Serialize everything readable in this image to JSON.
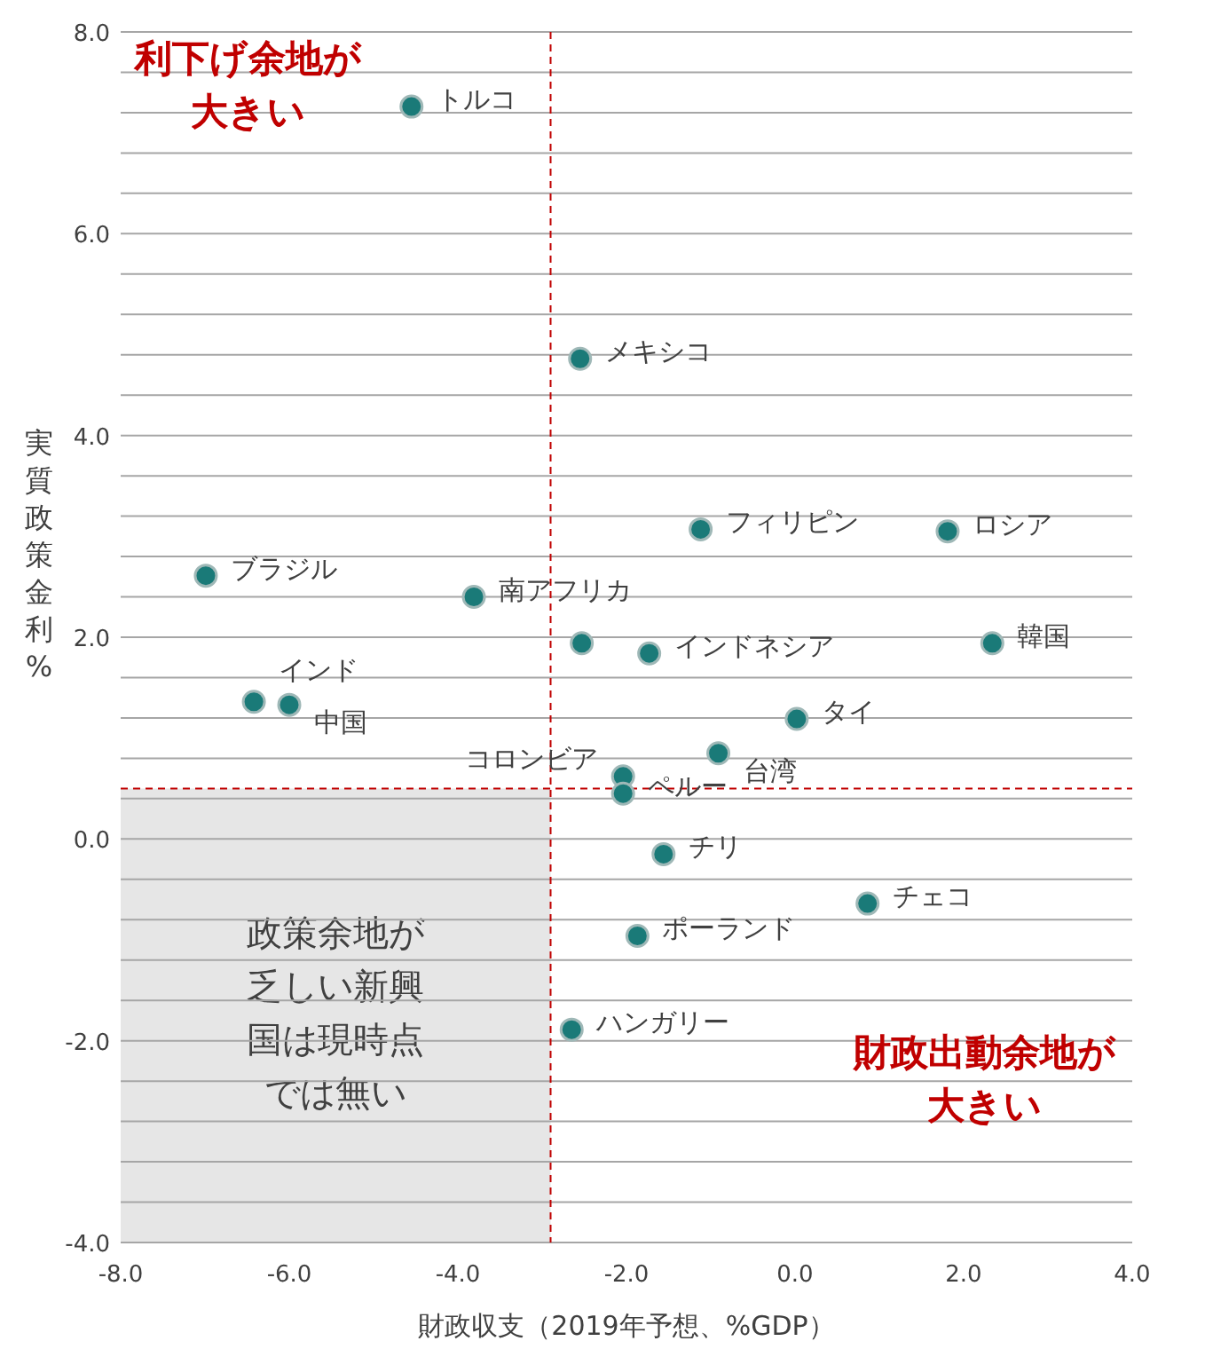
{
  "chart_data": {
    "type": "scatter",
    "xlabel": "財政収支（2019年予想、%GDP）",
    "ylabel": "実質政策金利%",
    "x": [
      -4.55,
      -2.55,
      -1.12,
      1.81,
      -6.99,
      -3.81,
      -2.53,
      -1.73,
      2.34,
      -6.42,
      -6.0,
      0.02,
      -0.91,
      -2.04,
      -2.04,
      -1.56,
      0.86,
      -1.87,
      -2.65
    ],
    "series": [
      {
        "color": "#1a7a78",
        "values": [
          7.26,
          4.76,
          3.07,
          3.05,
          2.61,
          2.4,
          1.94,
          1.84,
          1.94,
          1.36,
          1.33,
          1.19,
          0.85,
          0.62,
          0.45,
          -0.15,
          -0.64,
          -0.96,
          -1.89
        ]
      }
    ],
    "marker": "circle",
    "grid": "y",
    "xlim": [
      -8,
      4
    ],
    "xticks": [
      {
        "value": -8,
        "label": "-8.0"
      },
      {
        "value": -6,
        "label": "-6.0"
      },
      {
        "value": -4,
        "label": "-4.0"
      },
      {
        "value": -2,
        "label": "-2.0"
      },
      {
        "value": 0,
        "label": "0.0"
      },
      {
        "value": 2,
        "label": "2.0"
      },
      {
        "value": 4,
        "label": "4.0"
      }
    ],
    "ylim": [
      -4,
      8
    ],
    "yticks": [
      {
        "value": -4,
        "label": "-4.0"
      },
      {
        "value": -3.6,
        "label": null
      },
      {
        "value": -3.2,
        "label": null
      },
      {
        "value": -2.8,
        "label": null
      },
      {
        "value": -2.4,
        "label": null
      },
      {
        "value": -2,
        "label": "-2.0"
      },
      {
        "value": -1.6,
        "label": null
      },
      {
        "value": -1.2,
        "label": null
      },
      {
        "value": -0.8,
        "label": null
      },
      {
        "value": -0.4,
        "label": null
      },
      {
        "value": 0,
        "label": "0.0"
      },
      {
        "value": 0.4,
        "label": null
      },
      {
        "value": 0.8,
        "label": null
      },
      {
        "value": 1.2,
        "label": null
      },
      {
        "value": 1.6,
        "label": null
      },
      {
        "value": 2,
        "label": "2.0"
      },
      {
        "value": 2.4,
        "label": null
      },
      {
        "value": 2.8,
        "label": null
      },
      {
        "value": 3.2,
        "label": null
      },
      {
        "value": 3.6,
        "label": null
      },
      {
        "value": 4,
        "label": "4.0"
      },
      {
        "value": 4.4,
        "label": null
      },
      {
        "value": 4.8,
        "label": null
      },
      {
        "value": 5.2,
        "label": null
      },
      {
        "value": 5.6,
        "label": null
      },
      {
        "value": 6,
        "label": "6.0"
      },
      {
        "value": 6.4,
        "label": null
      },
      {
        "value": 6.8,
        "label": null
      },
      {
        "value": 7.2,
        "label": null
      },
      {
        "value": 7.6,
        "label": null
      },
      {
        "value": 8,
        "label": "8.0"
      }
    ],
    "ref_lines": [
      {
        "axis": "x",
        "value": -2.9,
        "color": "#c00000",
        "line_style": "dashed"
      },
      {
        "axis": "y",
        "value": 0.5,
        "color": "#c00000",
        "line_style": "dashed"
      }
    ],
    "bands": [
      {
        "axis": "x",
        "from": -8,
        "to": -2.9,
        "label": "政策余地が乏しい新興国は現時点では無い",
        "color": "#e6e6e6"
      }
    ],
    "annotations": [
      {
        "text": "トルコ",
        "x": -4.55,
        "y": 7.26
      },
      {
        "text": "メキシコ",
        "x": -2.55,
        "y": 4.76
      },
      {
        "text": "フィリピン",
        "x": -1.12,
        "y": 3.07
      },
      {
        "text": "ロシア",
        "x": 1.81,
        "y": 3.05
      },
      {
        "text": "ブラジル",
        "x": -6.99,
        "y": 2.61
      },
      {
        "text": "南アフリカ",
        "x": -3.81,
        "y": 2.4
      },
      {
        "text": "インドネシア",
        "x": -1.73,
        "y": 1.84
      },
      {
        "text": "韓国",
        "x": 2.34,
        "y": 1.94
      },
      {
        "text": "インド",
        "x": -6.42,
        "y": 1.36
      },
      {
        "text": "中国",
        "x": -6.0,
        "y": 1.33
      },
      {
        "text": "タイ",
        "x": 0.02,
        "y": 1.19
      },
      {
        "text": "台湾",
        "x": -0.91,
        "y": 0.85
      },
      {
        "text": "コロンビア",
        "x": -2.04,
        "y": 0.62
      },
      {
        "text": "ペルー",
        "x": -2.04,
        "y": 0.45
      },
      {
        "text": "チリ",
        "x": -1.56,
        "y": -0.15
      },
      {
        "text": "チェコ",
        "x": 0.86,
        "y": -0.64
      },
      {
        "text": "ポーランド",
        "x": -1.87,
        "y": -0.96
      },
      {
        "text": "ハンガリー",
        "x": -2.65,
        "y": -1.89
      },
      "利下げ余地が大きい",
      "財政出動余地が大きい"
    ]
  }
}
